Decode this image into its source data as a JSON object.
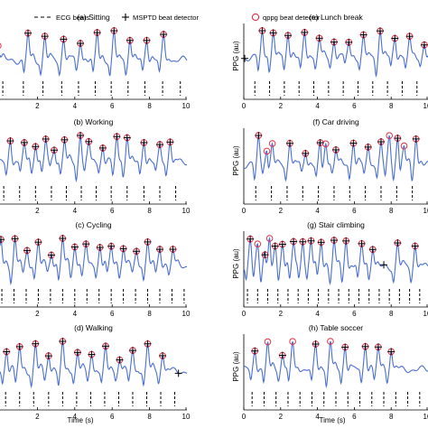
{
  "legend": {
    "ecg": "ECG beats",
    "mstpd": "MSPTD beat detector",
    "qppg": "qppg beat detector"
  },
  "colors": {
    "signal": "#4a6fd0",
    "qppg": "#e0304a",
    "text": "#000000"
  },
  "x_label": "Time (s)",
  "y_label": "PPG (au)",
  "chart_data": [
    {
      "type": "line",
      "title": "(a) Sitting",
      "xlim": [
        0,
        10
      ],
      "xticks": [
        "2",
        "4",
        "6",
        "8",
        "10"
      ],
      "ecg_beats": [
        0.15,
        1.25,
        2.3,
        3.3,
        4.2,
        5.1,
        5.95,
        6.85,
        7.75,
        8.7,
        9.65
      ],
      "qppg_beats": [
        -0.1,
        1.5,
        2.4,
        3.4,
        4.3,
        5.2,
        6.1,
        6.95,
        7.85,
        8.75
      ],
      "mstpd_beats": [
        1.5,
        2.4,
        3.4,
        4.3,
        5.2,
        6.1,
        6.95,
        7.85,
        8.75
      ]
    },
    {
      "type": "line",
      "title": "(b) Working",
      "xlim": [
        0,
        10
      ],
      "xticks": [
        "2",
        "4",
        "6",
        "8",
        "10"
      ],
      "ecg_beats": [
        0.2,
        1.05,
        1.9,
        2.75,
        3.55,
        4.35,
        5.15,
        5.95,
        6.8,
        7.7,
        8.55,
        9.4
      ],
      "qppg_beats": [
        0.55,
        1.3,
        1.9,
        2.45,
        2.9,
        3.45,
        4.3,
        4.75,
        5.5,
        6.25,
        6.8,
        7.7,
        8.55,
        9.1
      ],
      "mstpd_beats": [
        0.55,
        1.3,
        1.9,
        2.45,
        2.9,
        3.45,
        4.3,
        4.75,
        5.5,
        6.25,
        6.8,
        7.7,
        8.55,
        9.1
      ]
    },
    {
      "type": "line",
      "title": "(c) Cycling",
      "xlim": [
        0,
        10
      ],
      "xticks": [
        "2",
        "4",
        "6",
        "8",
        "10"
      ],
      "ecg_beats": [
        0.1,
        0.75,
        1.4,
        2.05,
        2.7,
        3.35,
        4,
        4.65,
        5.3,
        5.95,
        6.6,
        7.25,
        7.9,
        8.55,
        9.2,
        9.85
      ],
      "qppg_beats": [
        0.05,
        0.8,
        1.45,
        2.05,
        2.75,
        3.35,
        4.0,
        4.6,
        5.35,
        5.95,
        6.6,
        7.3,
        7.9,
        8.55,
        9.25
      ],
      "mstpd_beats": [
        0.05,
        0.8,
        1.45,
        2.05,
        2.75,
        3.35,
        4.0,
        4.6,
        5.35,
        5.95,
        6.6,
        7.3,
        7.9,
        8.55,
        9.25
      ]
    },
    {
      "type": "line",
      "title": "(d) Walking",
      "xlim": [
        0,
        10
      ],
      "xticks": [
        "2",
        "4",
        "6",
        "8",
        "10"
      ],
      "ecg_beats": [
        0.3,
        1.05,
        1.8,
        2.6,
        3.35,
        4.1,
        4.85,
        5.6,
        6.35,
        7.1,
        7.85,
        8.6,
        9.35
      ],
      "qppg_beats": [
        0.35,
        1.05,
        1.9,
        2.6,
        3.35,
        4.15,
        4.9,
        5.65,
        6.4,
        7.1,
        7.9,
        8.7
      ],
      "mstpd_beats": [
        0.35,
        1.05,
        1.9,
        2.6,
        3.35,
        4.15,
        4.9,
        5.65,
        6.4,
        7.1,
        7.9,
        8.7,
        9.55
      ]
    },
    {
      "type": "line",
      "title": "(e) Lunch break",
      "xlim": [
        0,
        10
      ],
      "xticks": [
        "0",
        "2",
        "4",
        "6",
        "8",
        "10"
      ],
      "ecg_beats": [
        0.6,
        1.4,
        2.2,
        3.0,
        3.8,
        4.6,
        5.4,
        6.2,
        7.0,
        7.8,
        8.6,
        9.4
      ],
      "qppg_beats": [
        1.0,
        1.6,
        2.4,
        3.3,
        4.1,
        4.9,
        5.7,
        6.5,
        7.4,
        8.2,
        9.0,
        9.8
      ],
      "mstpd_beats": [
        0.05,
        1.0,
        1.6,
        2.4,
        3.3,
        4.1,
        4.9,
        5.7,
        6.5,
        7.4,
        8.2,
        9.0,
        9.8
      ]
    },
    {
      "type": "line",
      "title": "(f) Car driving",
      "xlim": [
        0,
        10
      ],
      "xticks": [
        "0",
        "2",
        "4",
        "6",
        "8",
        "10"
      ],
      "ecg_beats": [
        0.65,
        1.5,
        2.35,
        3.2,
        4.05,
        4.9,
        5.75,
        6.6,
        7.45,
        8.3,
        9.15
      ],
      "qppg_beats": [
        0.8,
        1.25,
        1.55,
        2.5,
        3.35,
        4.15,
        4.45,
        5.0,
        5.95,
        6.75,
        7.45,
        7.9,
        8.35,
        8.7,
        9.35
      ],
      "mstpd_beats": [
        0.8,
        2.5,
        3.35,
        4.15,
        5.0,
        5.95,
        6.75,
        7.45,
        8.35,
        9.35
      ]
    },
    {
      "type": "line",
      "title": "(g) Stair climbing",
      "xlim": [
        0,
        10
      ],
      "xticks": [
        "0",
        "2",
        "4",
        "6",
        "8",
        "10"
      ],
      "ecg_beats": [
        0.2,
        0.75,
        1.3,
        1.85,
        2.4,
        2.95,
        3.5,
        4.05,
        4.6,
        5.15,
        5.7,
        6.25,
        6.8,
        7.35,
        7.9,
        8.45,
        9.0,
        9.55
      ],
      "qppg_beats": [
        0.35,
        0.75,
        1.15,
        1.4,
        1.7,
        2.1,
        2.7,
        3.2,
        3.65,
        4.2,
        4.9,
        5.55,
        6.4,
        7.0,
        8.35,
        9.3
      ],
      "mstpd_beats": [
        0.35,
        1.15,
        1.7,
        2.1,
        2.7,
        3.2,
        3.65,
        4.2,
        4.9,
        5.55,
        6.4,
        7.0,
        7.6,
        8.35,
        9.3
      ]
    },
    {
      "type": "line",
      "title": "(h) Table soccer",
      "xlim": [
        0,
        10
      ],
      "xticks": [
        "0",
        "2",
        "4",
        "6",
        "8",
        "10"
      ],
      "ecg_beats": [
        0.45,
        1.1,
        1.75,
        2.4,
        3.05,
        3.7,
        4.35,
        5.0,
        5.65,
        6.3,
        6.95,
        7.6,
        8.25,
        8.9,
        9.55
      ],
      "qppg_beats": [
        0.6,
        1.3,
        2.1,
        2.65,
        3.9,
        4.7,
        5.5,
        6.6,
        7.3,
        8.0
      ],
      "mstpd_beats": [
        0.6,
        2.1,
        3.9,
        5.5,
        6.6,
        7.3,
        8.0
      ]
    }
  ]
}
